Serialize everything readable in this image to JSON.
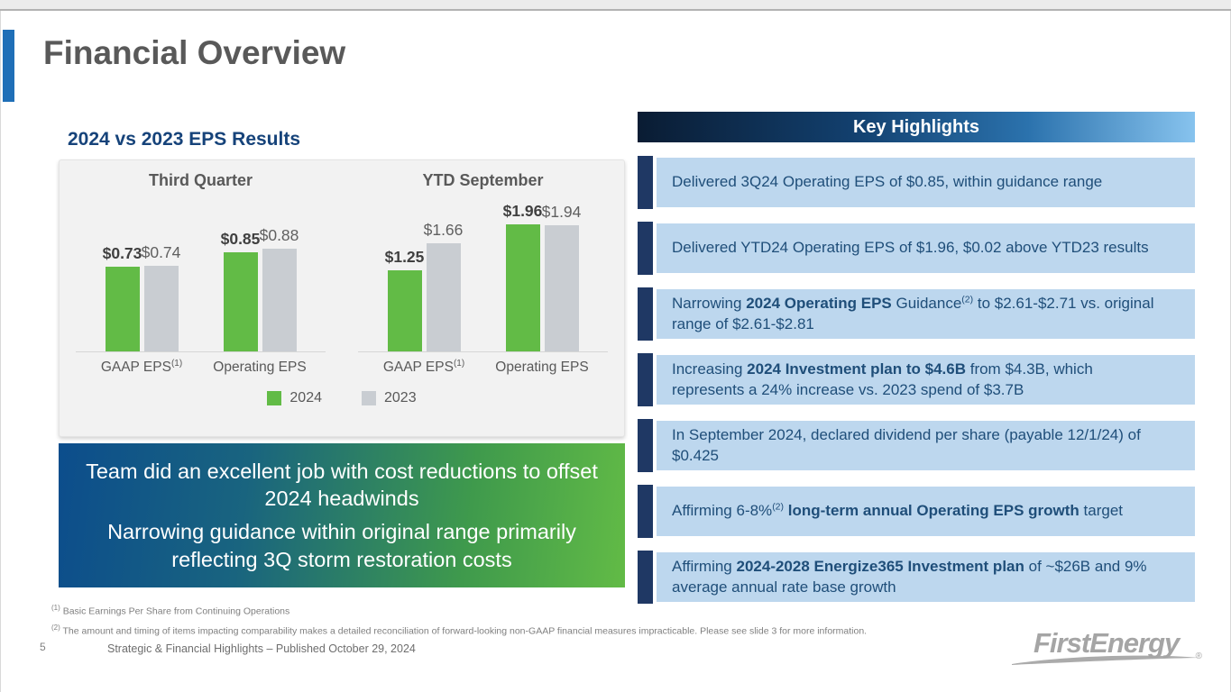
{
  "page": {
    "title": "Financial Overview",
    "page_number": "5",
    "footer": "Strategic & Financial Highlights – Published October 29, 2024",
    "brand": "FirstEnergy",
    "brand_reg": "®"
  },
  "eps": {
    "heading": "2024 vs 2023 EPS Results",
    "callout_lines": [
      "Team did an excellent job with cost reductions to offset 2024 headwinds",
      "Narrowing guidance within original range primarily reflecting 3Q storm restoration costs"
    ]
  },
  "chart_data": {
    "type": "bar",
    "title": "2024 vs 2023 EPS Results",
    "legend_position": "bottom",
    "legend": [
      {
        "name": "2024",
        "color": "#62bb46"
      },
      {
        "name": "2023",
        "color": "#c9cdd2"
      }
    ],
    "groups": [
      {
        "title": "Third Quarter",
        "categories": [
          {
            "label": "GAAP EPS",
            "sup": "(1)",
            "values": [
              0.73,
              0.74
            ],
            "value_labels": [
              "$0.73",
              "$0.74"
            ]
          },
          {
            "label": "Operating EPS",
            "sup": "",
            "values": [
              0.85,
              0.88
            ],
            "value_labels": [
              "$0.85",
              "$0.88"
            ]
          }
        ]
      },
      {
        "title": "YTD September",
        "categories": [
          {
            "label": "GAAP EPS",
            "sup": "(1)",
            "values": [
              1.25,
              1.66
            ],
            "value_labels": [
              "$1.25",
              "$1.66"
            ]
          },
          {
            "label": "Operating EPS",
            "sup": "",
            "values": [
              1.96,
              1.94
            ],
            "value_labels": [
              "$1.96",
              "$1.94"
            ]
          }
        ]
      }
    ]
  },
  "highlights": {
    "header": "Key Highlights",
    "accent_color": "#1f3864",
    "box_color": "#bdd7ee",
    "text_color": "#1f4e79",
    "items": [
      {
        "segments": [
          {
            "t": "Delivered 3Q24 Operating EPS of $0.85, within guidance range"
          }
        ]
      },
      {
        "segments": [
          {
            "t": "Delivered YTD24 Operating EPS of $1.96, $0.02 above YTD23 results"
          }
        ]
      },
      {
        "segments": [
          {
            "t": "Narrowing "
          },
          {
            "t": "2024 Operating EPS",
            "b": true
          },
          {
            "t": " Guidance"
          },
          {
            "t": "(2)",
            "sup": true
          },
          {
            "t": " to $2.61-$2.71 vs. original range of $2.61-$2.81"
          }
        ]
      },
      {
        "segments": [
          {
            "t": "Increasing "
          },
          {
            "t": "2024 Investment plan to $4.6B",
            "b": true
          },
          {
            "t": " from $4.3B, which represents a 24% increase vs. 2023 spend of $3.7B"
          }
        ]
      },
      {
        "segments": [
          {
            "t": "In September 2024, declared dividend per share (payable 12/1/24) of $0.425"
          }
        ]
      },
      {
        "segments": [
          {
            "t": "Affirming 6-8%"
          },
          {
            "t": "(2)",
            "sup": true
          },
          {
            "t": " "
          },
          {
            "t": "long-term annual Operating EPS growth",
            "b": true
          },
          {
            "t": " target"
          }
        ]
      },
      {
        "segments": [
          {
            "t": "Affirming "
          },
          {
            "t": "2024-2028 Energize365 Investment plan",
            "b": true
          },
          {
            "t": " of ~$26B and 9% average annual rate base growth"
          }
        ]
      }
    ]
  },
  "footnotes": [
    {
      "sup": "(1)",
      "text": "Basic Earnings Per Share from Continuing Operations"
    },
    {
      "sup": "(2)",
      "text": "The amount and timing of items impacting comparability makes a detailed reconciliation of forward-looking non-GAAP financial measures impracticable. Please see slide 3 for more information."
    }
  ]
}
